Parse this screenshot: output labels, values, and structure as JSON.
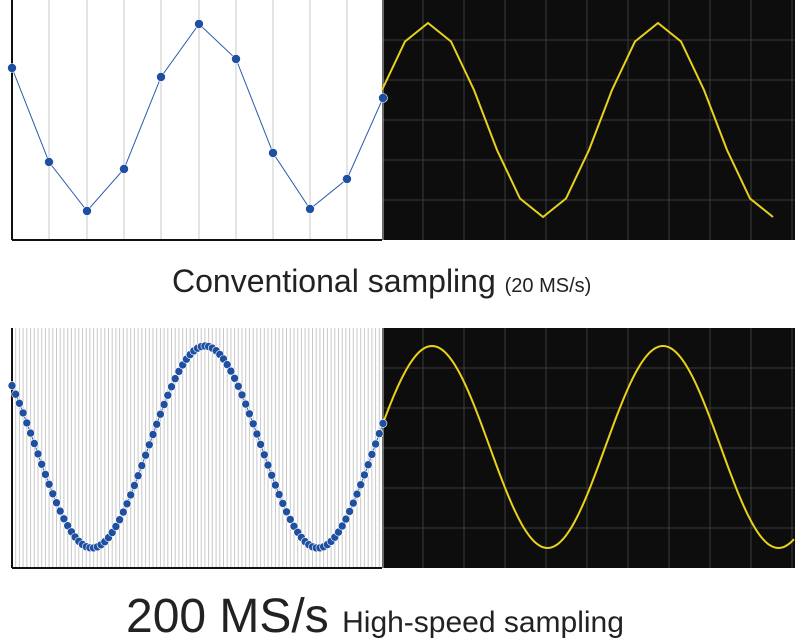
{
  "top_caption": {
    "main": "Conventional sampling",
    "rate": "(20 MS/s)"
  },
  "bottom_caption": {
    "rate": "200 MS/s",
    "main": "High-speed sampling"
  }
}
